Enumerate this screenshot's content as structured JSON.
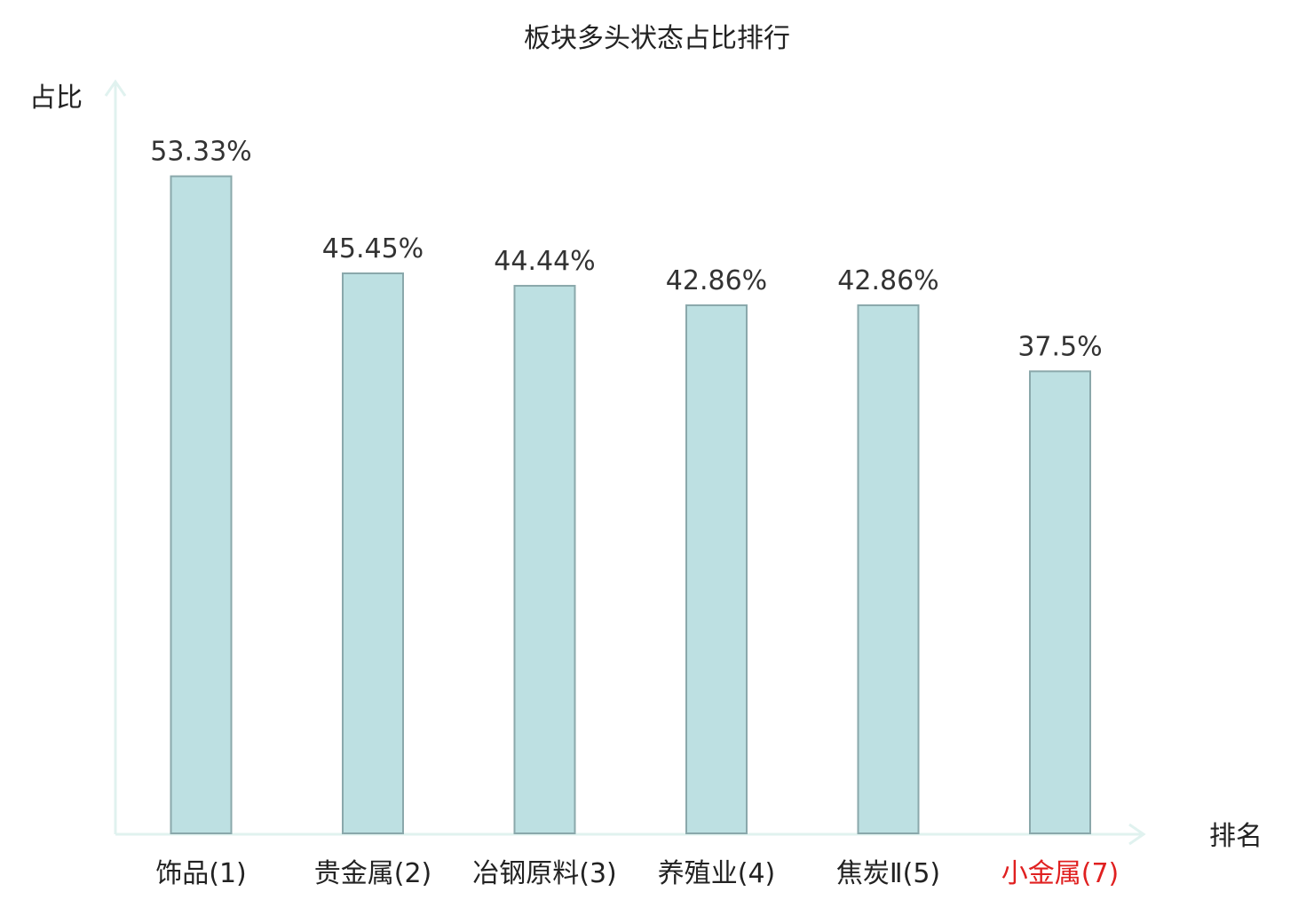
{
  "colors": {
    "bar_fill": "#bde0e2",
    "bar_stroke": "#8aa8ab",
    "axis": "#e0f2ef",
    "text": "#222222",
    "highlight": "#e02020"
  },
  "chart_data": {
    "type": "bar",
    "title": "板块多头状态占比排行",
    "xlabel": "排名",
    "ylabel": "占比",
    "categories": [
      "饰品(1)",
      "贵金属(2)",
      "冶钢原料(3)",
      "养殖业(4)",
      "焦炭Ⅱ(5)",
      "小金属(7)"
    ],
    "values": [
      53.33,
      45.45,
      44.44,
      42.86,
      42.86,
      37.5
    ],
    "value_labels": [
      "53.33%",
      "45.45%",
      "44.44%",
      "42.86%",
      "42.86%",
      "37.5%"
    ],
    "highlighted_category": "小金属(7)",
    "ylim": [
      0,
      60
    ],
    "grid": false,
    "legend": false
  }
}
